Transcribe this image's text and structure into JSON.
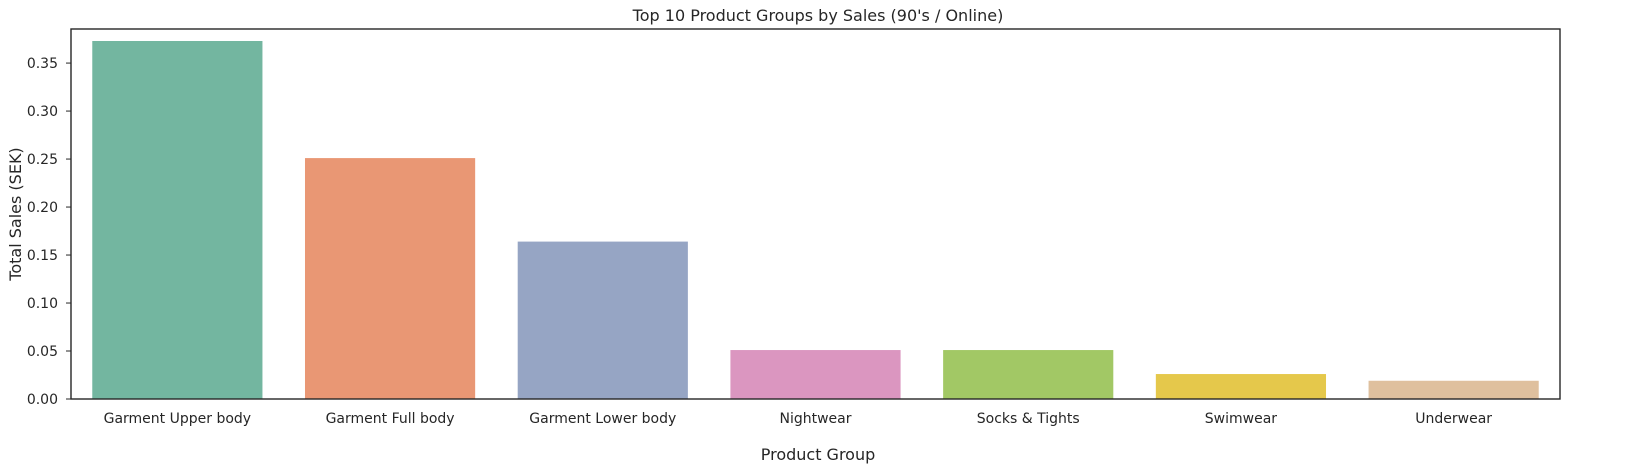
{
  "chart_data": {
    "type": "bar",
    "title": "Top 10 Product Groups by Sales (90's / Online)",
    "xlabel": "Product Group",
    "ylabel": "Total Sales (SEK)",
    "categories": [
      "Garment Upper body",
      "Garment Full body",
      "Garment Lower body",
      "Nightwear",
      "Socks & Tights",
      "Swimwear",
      "Underwear"
    ],
    "values": [
      0.373,
      0.251,
      0.164,
      0.051,
      0.051,
      0.026,
      0.019
    ],
    "colors": [
      "#73b6a0",
      "#e99774",
      "#96a5c4",
      "#db96c0",
      "#a2c865",
      "#e5c84b",
      "#dfc09e"
    ],
    "ylim": [
      0,
      0.3855
    ],
    "yticks": [
      "0.00",
      "0.05",
      "0.10",
      "0.15",
      "0.20",
      "0.25",
      "0.30",
      "0.35"
    ],
    "grid": false,
    "legend": false
  }
}
